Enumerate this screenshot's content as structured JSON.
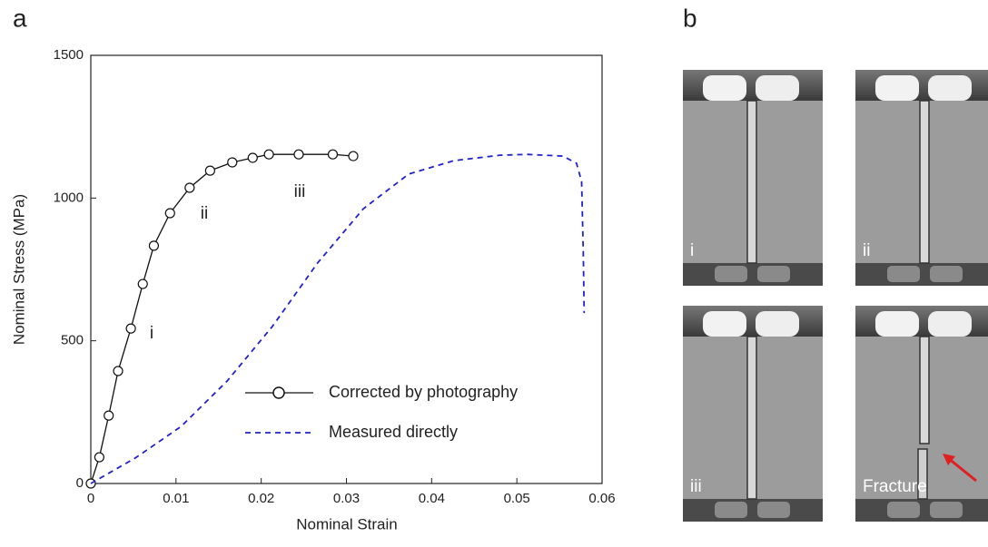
{
  "panel_labels": [
    "a",
    "b"
  ],
  "chart_data": {
    "type": "line",
    "xlabel": "Nominal Strain",
    "ylabel": "Nominal Stress (MPa)",
    "xlim": [
      0,
      0.06
    ],
    "xticks": [
      0,
      0.01,
      0.02,
      0.03,
      0.04,
      0.05,
      0.06
    ],
    "ylim": [
      0,
      1500
    ],
    "yticks": [
      0,
      500,
      1000,
      1500
    ],
    "grid": false,
    "legend": "lower right",
    "annotations": [
      "i",
      "ii",
      "iii"
    ],
    "series": [
      {
        "name": "Corrected by photography",
        "color": "#111111",
        "marker": "circle",
        "dash": "solid",
        "x": [
          0,
          0.001,
          0.0021,
          0.0032,
          0.0047,
          0.0061,
          0.0074,
          0.0093,
          0.0116,
          0.014,
          0.0166,
          0.019,
          0.0209,
          0.0244,
          0.0284,
          0.0308
        ],
        "values": [
          0,
          92,
          238,
          394,
          543,
          699,
          833,
          947,
          1036,
          1096,
          1125,
          1141,
          1153,
          1153,
          1153,
          1147
        ]
      },
      {
        "name": "Measured directly",
        "color": "#2222cc",
        "marker": "none",
        "dash": "dashed",
        "x": [
          0,
          0.0052,
          0.0106,
          0.016,
          0.0213,
          0.0266,
          0.032,
          0.0373,
          0.0426,
          0.048,
          0.0512,
          0.0554,
          0.057,
          0.0576,
          0.0578,
          0.0579
        ],
        "values": [
          0,
          89,
          200,
          359,
          550,
          772,
          963,
          1084,
          1131,
          1150,
          1153,
          1147,
          1122,
          1058,
          804,
          597
        ]
      }
    ]
  },
  "photos": [
    {
      "label": "i"
    },
    {
      "label": "ii"
    },
    {
      "label": "iii"
    },
    {
      "label": "Fracture"
    }
  ]
}
